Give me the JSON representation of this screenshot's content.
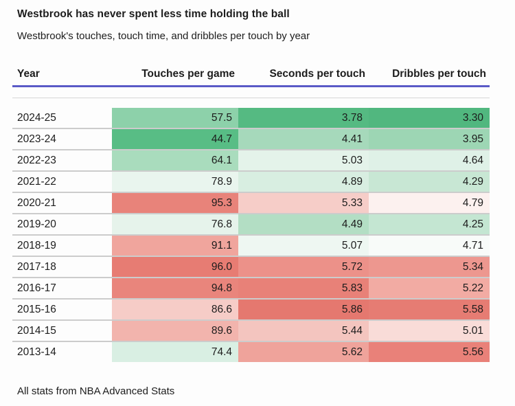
{
  "page": {
    "title": "Westbrook has never spent less time holding the ball",
    "subtitle": "Westbrook's touches, touch time, and dribbles per touch by year",
    "footer_note": "All stats from NBA Advanced Stats"
  },
  "table": {
    "columns": [
      "Year",
      "Touches per game",
      "Seconds per touch",
      "Dribbles per touch"
    ],
    "header_rule_color": "#5a5ac7",
    "rows": [
      {
        "year": "2024-25",
        "cells": [
          {
            "value": "57.5",
            "bg": "#8dd1aa"
          },
          {
            "value": "3.78",
            "bg": "#55ba82"
          },
          {
            "value": "3.30",
            "bg": "#51b77f"
          }
        ]
      },
      {
        "year": "2023-24",
        "cells": [
          {
            "value": "44.7",
            "bg": "#58bd85"
          },
          {
            "value": "4.41",
            "bg": "#a6d9bb"
          },
          {
            "value": "3.95",
            "bg": "#9dd6b4"
          }
        ]
      },
      {
        "year": "2022-23",
        "cells": [
          {
            "value": "64.1",
            "bg": "#a9dcbd"
          },
          {
            "value": "5.03",
            "bg": "#e4f3ea"
          },
          {
            "value": "4.64",
            "bg": "#dff1e7"
          }
        ]
      },
      {
        "year": "2021-22",
        "cells": [
          {
            "value": "78.9",
            "bg": "#e9f5ee"
          },
          {
            "value": "4.89",
            "bg": "#d8eee1"
          },
          {
            "value": "4.29",
            "bg": "#c8e7d4"
          }
        ]
      },
      {
        "year": "2020-21",
        "cells": [
          {
            "value": "95.3",
            "bg": "#e8837a"
          },
          {
            "value": "5.33",
            "bg": "#f6cdc8"
          },
          {
            "value": "4.79",
            "bg": "#fcf1ef"
          }
        ]
      },
      {
        "year": "2019-20",
        "cells": [
          {
            "value": "76.8",
            "bg": "#e6f3eb"
          },
          {
            "value": "4.49",
            "bg": "#b3dec4"
          },
          {
            "value": "4.25",
            "bg": "#c4e6d2"
          }
        ]
      },
      {
        "year": "2018-19",
        "cells": [
          {
            "value": "91.1",
            "bg": "#f0a59d"
          },
          {
            "value": "5.07",
            "bg": "#eef7f2"
          },
          {
            "value": "4.71",
            "bg": "#f8fbf9"
          }
        ]
      },
      {
        "year": "2017-18",
        "cells": [
          {
            "value": "96.0",
            "bg": "#e77c73"
          },
          {
            "value": "5.72",
            "bg": "#ec9189"
          },
          {
            "value": "5.34",
            "bg": "#ed978f"
          }
        ]
      },
      {
        "year": "2016-17",
        "cells": [
          {
            "value": "94.8",
            "bg": "#e9857c"
          },
          {
            "value": "5.83",
            "bg": "#e88178"
          },
          {
            "value": "5.22",
            "bg": "#f2aba3"
          }
        ]
      },
      {
        "year": "2015-16",
        "cells": [
          {
            "value": "86.6",
            "bg": "#f6ccc7"
          },
          {
            "value": "5.86",
            "bg": "#e5786f"
          },
          {
            "value": "5.58",
            "bg": "#e67c73"
          }
        ]
      },
      {
        "year": "2014-15",
        "cells": [
          {
            "value": "89.6",
            "bg": "#f2b4ad"
          },
          {
            "value": "5.44",
            "bg": "#f4c5bf"
          },
          {
            "value": "5.01",
            "bg": "#f9dcd8"
          }
        ]
      },
      {
        "year": "2013-14",
        "cells": [
          {
            "value": "74.4",
            "bg": "#d9efe3"
          },
          {
            "value": "5.62",
            "bg": "#efa39b"
          },
          {
            "value": "5.56",
            "bg": "#e98179"
          }
        ]
      }
    ]
  },
  "chart_data": {
    "type": "table",
    "title": "Westbrook has never spent less time holding the ball",
    "subtitle": "Westbrook's touches, touch time, and dribbles per touch by year",
    "source_note": "All stats from NBA Advanced Stats",
    "columns": [
      "Year",
      "Touches per game",
      "Seconds per touch",
      "Dribbles per touch"
    ],
    "rows": [
      [
        "2024-25",
        57.5,
        3.78,
        3.3
      ],
      [
        "2023-24",
        44.7,
        4.41,
        3.95
      ],
      [
        "2022-23",
        64.1,
        5.03,
        4.64
      ],
      [
        "2021-22",
        78.9,
        4.89,
        4.29
      ],
      [
        "2020-21",
        95.3,
        5.33,
        4.79
      ],
      [
        "2019-20",
        76.8,
        4.49,
        4.25
      ],
      [
        "2018-19",
        91.1,
        5.07,
        4.71
      ],
      [
        "2017-18",
        96.0,
        5.72,
        5.34
      ],
      [
        "2016-17",
        94.8,
        5.83,
        5.22
      ],
      [
        "2015-16",
        86.6,
        5.86,
        5.58
      ],
      [
        "2014-15",
        89.6,
        5.44,
        5.01
      ],
      [
        "2013-14",
        74.4,
        5.62,
        5.56
      ]
    ],
    "color_encoding": {
      "low_color": "#57bb84",
      "mid_color": "#ffffff",
      "high_color": "#e5786f",
      "mapping": "3-color scale applied per column: green = lowest value, white = middle, red = highest value"
    },
    "layout": {
      "grid": "off",
      "heatmap_cells": true,
      "value_alignment": "right"
    }
  }
}
